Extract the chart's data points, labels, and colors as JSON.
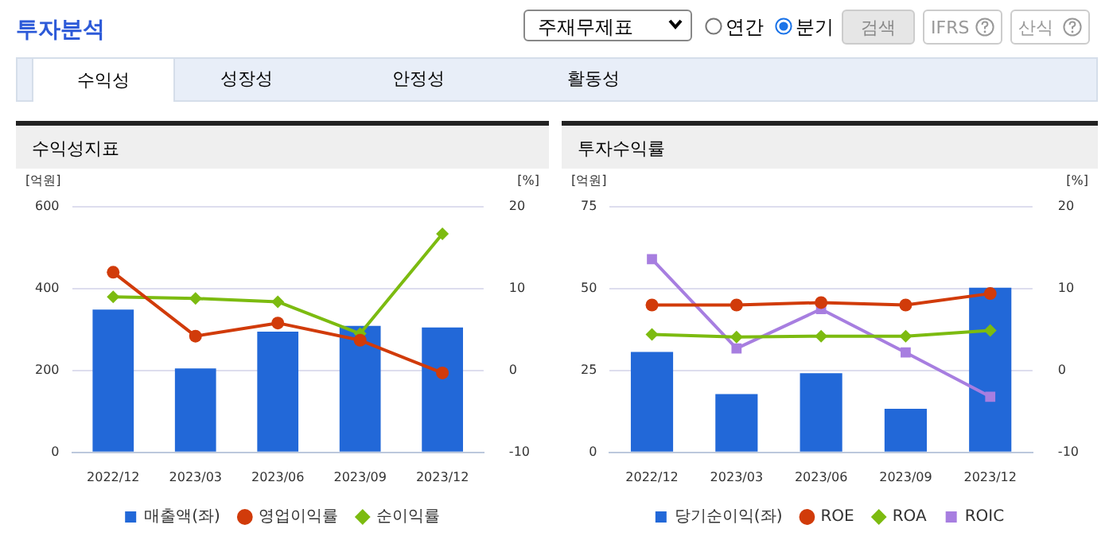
{
  "chart_data": [
    {
      "type": "bar",
      "title": "수익성지표",
      "ylabel": "[억원]",
      "y2label": "[%]",
      "annotations": [
        "투자분석",
        "주재무제표",
        "연간",
        "분기",
        "검색",
        "IFRS",
        "산식",
        "수익성",
        "성장성",
        "안정성",
        "활동성"
      ],
      "categories": [
        "2022/12",
        "2023/03",
        "2023/06",
        "2023/09",
        "2023/12"
      ],
      "series": [
        {
          "name": "매출액(좌)",
          "color": "#2268d8",
          "values": [
            349,
            205,
            295,
            309,
            305
          ]
        },
        {
          "name": "영업이익률",
          "type": "line",
          "axis": "y2",
          "color": "#d13b0a",
          "marker": "circle",
          "values": [
            12.0,
            4.2,
            5.8,
            3.7,
            -0.3
          ]
        },
        {
          "name": "순이익률",
          "type": "line",
          "axis": "y2",
          "color": "#7cbb10",
          "marker": "diamond",
          "values": [
            9.0,
            8.8,
            8.4,
            4.5,
            16.7
          ]
        }
      ],
      "ylim": [
        0,
        600
      ],
      "yticks": [
        0,
        200,
        400,
        600
      ],
      "y2lim": [
        -10,
        20
      ],
      "y2ticks": [
        -10,
        0,
        10,
        20
      ],
      "grid": "y",
      "legend": "bottom"
    },
    {
      "type": "bar",
      "title": "투자수익률",
      "ylabel": "[억원]",
      "y2label": "[%]",
      "categories": [
        "2022/12",
        "2023/03",
        "2023/06",
        "2023/09",
        "2023/12"
      ],
      "series": [
        {
          "name": "당기순이익(좌)",
          "color": "#2268d8",
          "values": [
            30.7,
            17.8,
            24.2,
            13.3,
            50.3
          ]
        },
        {
          "name": "ROE",
          "type": "line",
          "axis": "y2",
          "color": "#d13b0a",
          "marker": "circle",
          "values": [
            8.0,
            8.0,
            8.3,
            8.0,
            9.4
          ]
        },
        {
          "name": "ROA",
          "type": "line",
          "axis": "y2",
          "color": "#7cbb10",
          "marker": "diamond",
          "values": [
            4.4,
            4.1,
            4.2,
            4.2,
            4.9
          ]
        },
        {
          "name": "ROIC",
          "type": "line",
          "axis": "y2",
          "color": "#a77ee0",
          "marker": "square",
          "values": [
            13.6,
            2.7,
            7.5,
            2.2,
            -3.2
          ]
        }
      ],
      "ylim": [
        0,
        75
      ],
      "yticks": [
        0,
        25,
        50,
        75
      ],
      "y2lim": [
        -10,
        20
      ],
      "y2ticks": [
        -10,
        0,
        10,
        20
      ],
      "grid": "y",
      "legend": "bottom"
    }
  ]
}
